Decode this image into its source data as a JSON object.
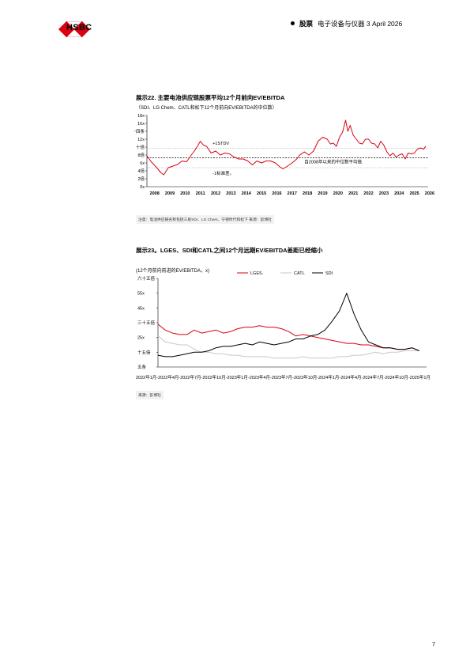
{
  "header": {
    "brand": "HSBC",
    "section": "股票",
    "info": "电子设备与仪器 3 April 2026"
  },
  "chart22": {
    "title": "展示22. 主要电池供应链股票平均12个月前向EV/EBITDA",
    "subtitle": "（SDI、LG Chem、CATL和松下12个月前向EV/EBITDA的中位数）",
    "source": "注意：电池供应链名称包括三星SDI、LG Chem、宁德时代和松下 来源：彭博社",
    "yticks": [
      "0x",
      "2倍",
      "4倍",
      "6x",
      "8倍",
      "十倍",
      "12x",
      "十四条",
      "16x",
      "18x"
    ],
    "xticks": [
      "2008",
      "2009",
      "2010",
      "2011",
      "2012",
      "2013",
      "2014",
      "2015",
      "2016",
      "2017",
      "2018",
      "2019",
      "2020",
      "2021",
      "2022",
      "2023",
      "2024",
      "2025",
      "2026"
    ],
    "annotations": {
      "plus": "+1STDV",
      "minus": "-1标准差。",
      "median": "自2008年以来的中位数平均值"
    }
  },
  "chart23": {
    "title": "展示23。LGES、SDI和CATL之间12个月远期EV/EBITDA差距已经缩小",
    "subtitle": "(12个月前向前进的EV/EBITDA，x)",
    "source": "来源：彭博社",
    "legend": [
      "LGES.",
      "CATL",
      "SDI"
    ],
    "yticks": [
      "五条",
      "十五倍",
      "25x",
      "三十五倍",
      "45x",
      "55x",
      "六十五倍"
    ],
    "xaxis_text": "2022年1月-2022年4月-2022年7月-2022年10月-2023年1月-2023年4月-2023年7月-2023年10月-2024年1月-2024年4月-2024年7月-2024年10月-2025年1月"
  },
  "chart_data": [
    {
      "type": "line",
      "title": "展示22. 主要电池供应链股票平均12个月前向EV/EBITDA",
      "ylim": [
        0,
        18
      ],
      "xlim": [
        2008,
        2026.4
      ],
      "series": [
        {
          "color": "#db0011",
          "points": [
            [
              2008.0,
              7.8
            ],
            [
              2008.3,
              6.2
            ],
            [
              2008.6,
              5.0
            ],
            [
              2008.9,
              3.6
            ],
            [
              2009.1,
              3.0
            ],
            [
              2009.4,
              4.8
            ],
            [
              2009.7,
              5.2
            ],
            [
              2010.0,
              5.6
            ],
            [
              2010.3,
              6.5
            ],
            [
              2010.6,
              6.3
            ],
            [
              2010.9,
              8.0
            ],
            [
              2011.1,
              9.0
            ],
            [
              2011.3,
              10.2
            ],
            [
              2011.5,
              11.5
            ],
            [
              2011.7,
              10.5
            ],
            [
              2011.9,
              10.2
            ],
            [
              2012.2,
              8.5
            ],
            [
              2012.5,
              9.0
            ],
            [
              2012.8,
              8.0
            ],
            [
              2013.1,
              8.5
            ],
            [
              2013.4,
              8.3
            ],
            [
              2013.7,
              7.5
            ],
            [
              2014.0,
              7.0
            ],
            [
              2014.3,
              7.0
            ],
            [
              2014.6,
              6.5
            ],
            [
              2014.9,
              5.5
            ],
            [
              2015.2,
              6.5
            ],
            [
              2015.5,
              6.0
            ],
            [
              2015.8,
              6.5
            ],
            [
              2016.1,
              6.5
            ],
            [
              2016.4,
              6.0
            ],
            [
              2016.7,
              5.0
            ],
            [
              2016.9,
              4.5
            ],
            [
              2017.2,
              5.2
            ],
            [
              2017.5,
              6.0
            ],
            [
              2017.8,
              7.0
            ],
            [
              2018.0,
              8.0
            ],
            [
              2018.3,
              8.8
            ],
            [
              2018.6,
              8.0
            ],
            [
              2018.9,
              9.0
            ],
            [
              2019.2,
              11.5
            ],
            [
              2019.5,
              12.5
            ],
            [
              2019.8,
              12.0
            ],
            [
              2020.0,
              10.8
            ],
            [
              2020.2,
              11.0
            ],
            [
              2020.4,
              10.2
            ],
            [
              2020.6,
              12.5
            ],
            [
              2020.8,
              13.8
            ],
            [
              2021.0,
              16.8
            ],
            [
              2021.15,
              14.0
            ],
            [
              2021.3,
              15.5
            ],
            [
              2021.5,
              13.0
            ],
            [
              2021.7,
              12.0
            ],
            [
              2021.9,
              11.0
            ],
            [
              2022.1,
              10.8
            ],
            [
              2022.3,
              12.0
            ],
            [
              2022.5,
              12.0
            ],
            [
              2022.7,
              11.0
            ],
            [
              2022.9,
              10.8
            ],
            [
              2023.1,
              9.8
            ],
            [
              2023.3,
              11.5
            ],
            [
              2023.5,
              10.5
            ],
            [
              2023.7,
              8.8
            ],
            [
              2023.9,
              7.8
            ],
            [
              2024.1,
              8.5
            ],
            [
              2024.3,
              7.5
            ],
            [
              2024.5,
              8.0
            ],
            [
              2024.7,
              8.3
            ],
            [
              2024.9,
              7.0
            ],
            [
              2025.1,
              8.5
            ],
            [
              2025.3,
              8.3
            ],
            [
              2025.5,
              8.5
            ],
            [
              2025.7,
              9.5
            ],
            [
              2025.9,
              9.8
            ],
            [
              2026.1,
              9.5
            ],
            [
              2026.25,
              10.2
            ]
          ]
        }
      ],
      "reference_lines": [
        {
          "label": "+1STDV",
          "y": 9.7
        },
        {
          "label": "自2008年以来的中位数平均值",
          "y": 7.3
        },
        {
          "label": "-1标准差。",
          "y": 4.8
        }
      ]
    },
    {
      "type": "line",
      "title": "展示23。LGES、SDI和CATL之间12个月远期EV/EBITDA差距已经缩小",
      "ylim": [
        5,
        65
      ],
      "xlim": [
        0,
        37
      ],
      "series": [
        {
          "name": "LGES.",
          "color": "#db0011",
          "points": [
            [
              0,
              34
            ],
            [
              1,
              30
            ],
            [
              2,
              28
            ],
            [
              3,
              27
            ],
            [
              4,
              27
            ],
            [
              5,
              30
            ],
            [
              6,
              28
            ],
            [
              7,
              29
            ],
            [
              8,
              30
            ],
            [
              9,
              28
            ],
            [
              10,
              29
            ],
            [
              11,
              31
            ],
            [
              12,
              32
            ],
            [
              13,
              32
            ],
            [
              14,
              33
            ],
            [
              15,
              32
            ],
            [
              16,
              32
            ],
            [
              17,
              31
            ],
            [
              18,
              29
            ],
            [
              19,
              26
            ],
            [
              20,
              27
            ],
            [
              21,
              26
            ],
            [
              22,
              25
            ],
            [
              23,
              24
            ],
            [
              24,
              23
            ],
            [
              25,
              22
            ],
            [
              26,
              21
            ],
            [
              27,
              21
            ],
            [
              28,
              20
            ],
            [
              29,
              20
            ],
            [
              30,
              19
            ],
            [
              31,
              18
            ],
            [
              32,
              18
            ],
            [
              33,
              17
            ],
            [
              34,
              17
            ],
            [
              35,
              18
            ],
            [
              36,
              16
            ]
          ]
        },
        {
          "name": "CATL",
          "color": "#c8c8c8",
          "points": [
            [
              0,
              26
            ],
            [
              1,
              22
            ],
            [
              2,
              21
            ],
            [
              3,
              20
            ],
            [
              4,
              20
            ],
            [
              5,
              17
            ],
            [
              6,
              15
            ],
            [
              7,
              15
            ],
            [
              8,
              14
            ],
            [
              9,
              14
            ],
            [
              10,
              13
            ],
            [
              11,
              13
            ],
            [
              12,
              12
            ],
            [
              13,
              12
            ],
            [
              14,
              12
            ],
            [
              15,
              12
            ],
            [
              16,
              11
            ],
            [
              17,
              11
            ],
            [
              18,
              11
            ],
            [
              19,
              11
            ],
            [
              20,
              12
            ],
            [
              21,
              11
            ],
            [
              22,
              11
            ],
            [
              23,
              11
            ],
            [
              24,
              11
            ],
            [
              25,
              12
            ],
            [
              26,
              12
            ],
            [
              27,
              13
            ],
            [
              28,
              13
            ],
            [
              29,
              14
            ],
            [
              30,
              15
            ],
            [
              31,
              14
            ],
            [
              32,
              15
            ],
            [
              33,
              15
            ],
            [
              34,
              16
            ],
            [
              35,
              16
            ],
            [
              36,
              16
            ]
          ]
        },
        {
          "name": "SDI",
          "color": "#000000",
          "points": [
            [
              0,
              13
            ],
            [
              1,
              12
            ],
            [
              2,
              12
            ],
            [
              3,
              13
            ],
            [
              4,
              14
            ],
            [
              5,
              15
            ],
            [
              6,
              15
            ],
            [
              7,
              16
            ],
            [
              8,
              18
            ],
            [
              9,
              19
            ],
            [
              10,
              19
            ],
            [
              11,
              20
            ],
            [
              12,
              21
            ],
            [
              13,
              20
            ],
            [
              14,
              22
            ],
            [
              15,
              21
            ],
            [
              16,
              20
            ],
            [
              17,
              21
            ],
            [
              18,
              22
            ],
            [
              19,
              24
            ],
            [
              20,
              24
            ],
            [
              21,
              26
            ],
            [
              22,
              27
            ],
            [
              23,
              30
            ],
            [
              24,
              36
            ],
            [
              25,
              43
            ],
            [
              26,
              55
            ],
            [
              27,
              41
            ],
            [
              28,
              30
            ],
            [
              29,
              22
            ],
            [
              30,
              20
            ],
            [
              31,
              18
            ],
            [
              32,
              18
            ],
            [
              33,
              17
            ],
            [
              34,
              17
            ],
            [
              35,
              18
            ],
            [
              36,
              16
            ]
          ]
        }
      ]
    }
  ],
  "page": {
    "number": "7"
  },
  "colors": {
    "brand_red": "#db0011"
  }
}
